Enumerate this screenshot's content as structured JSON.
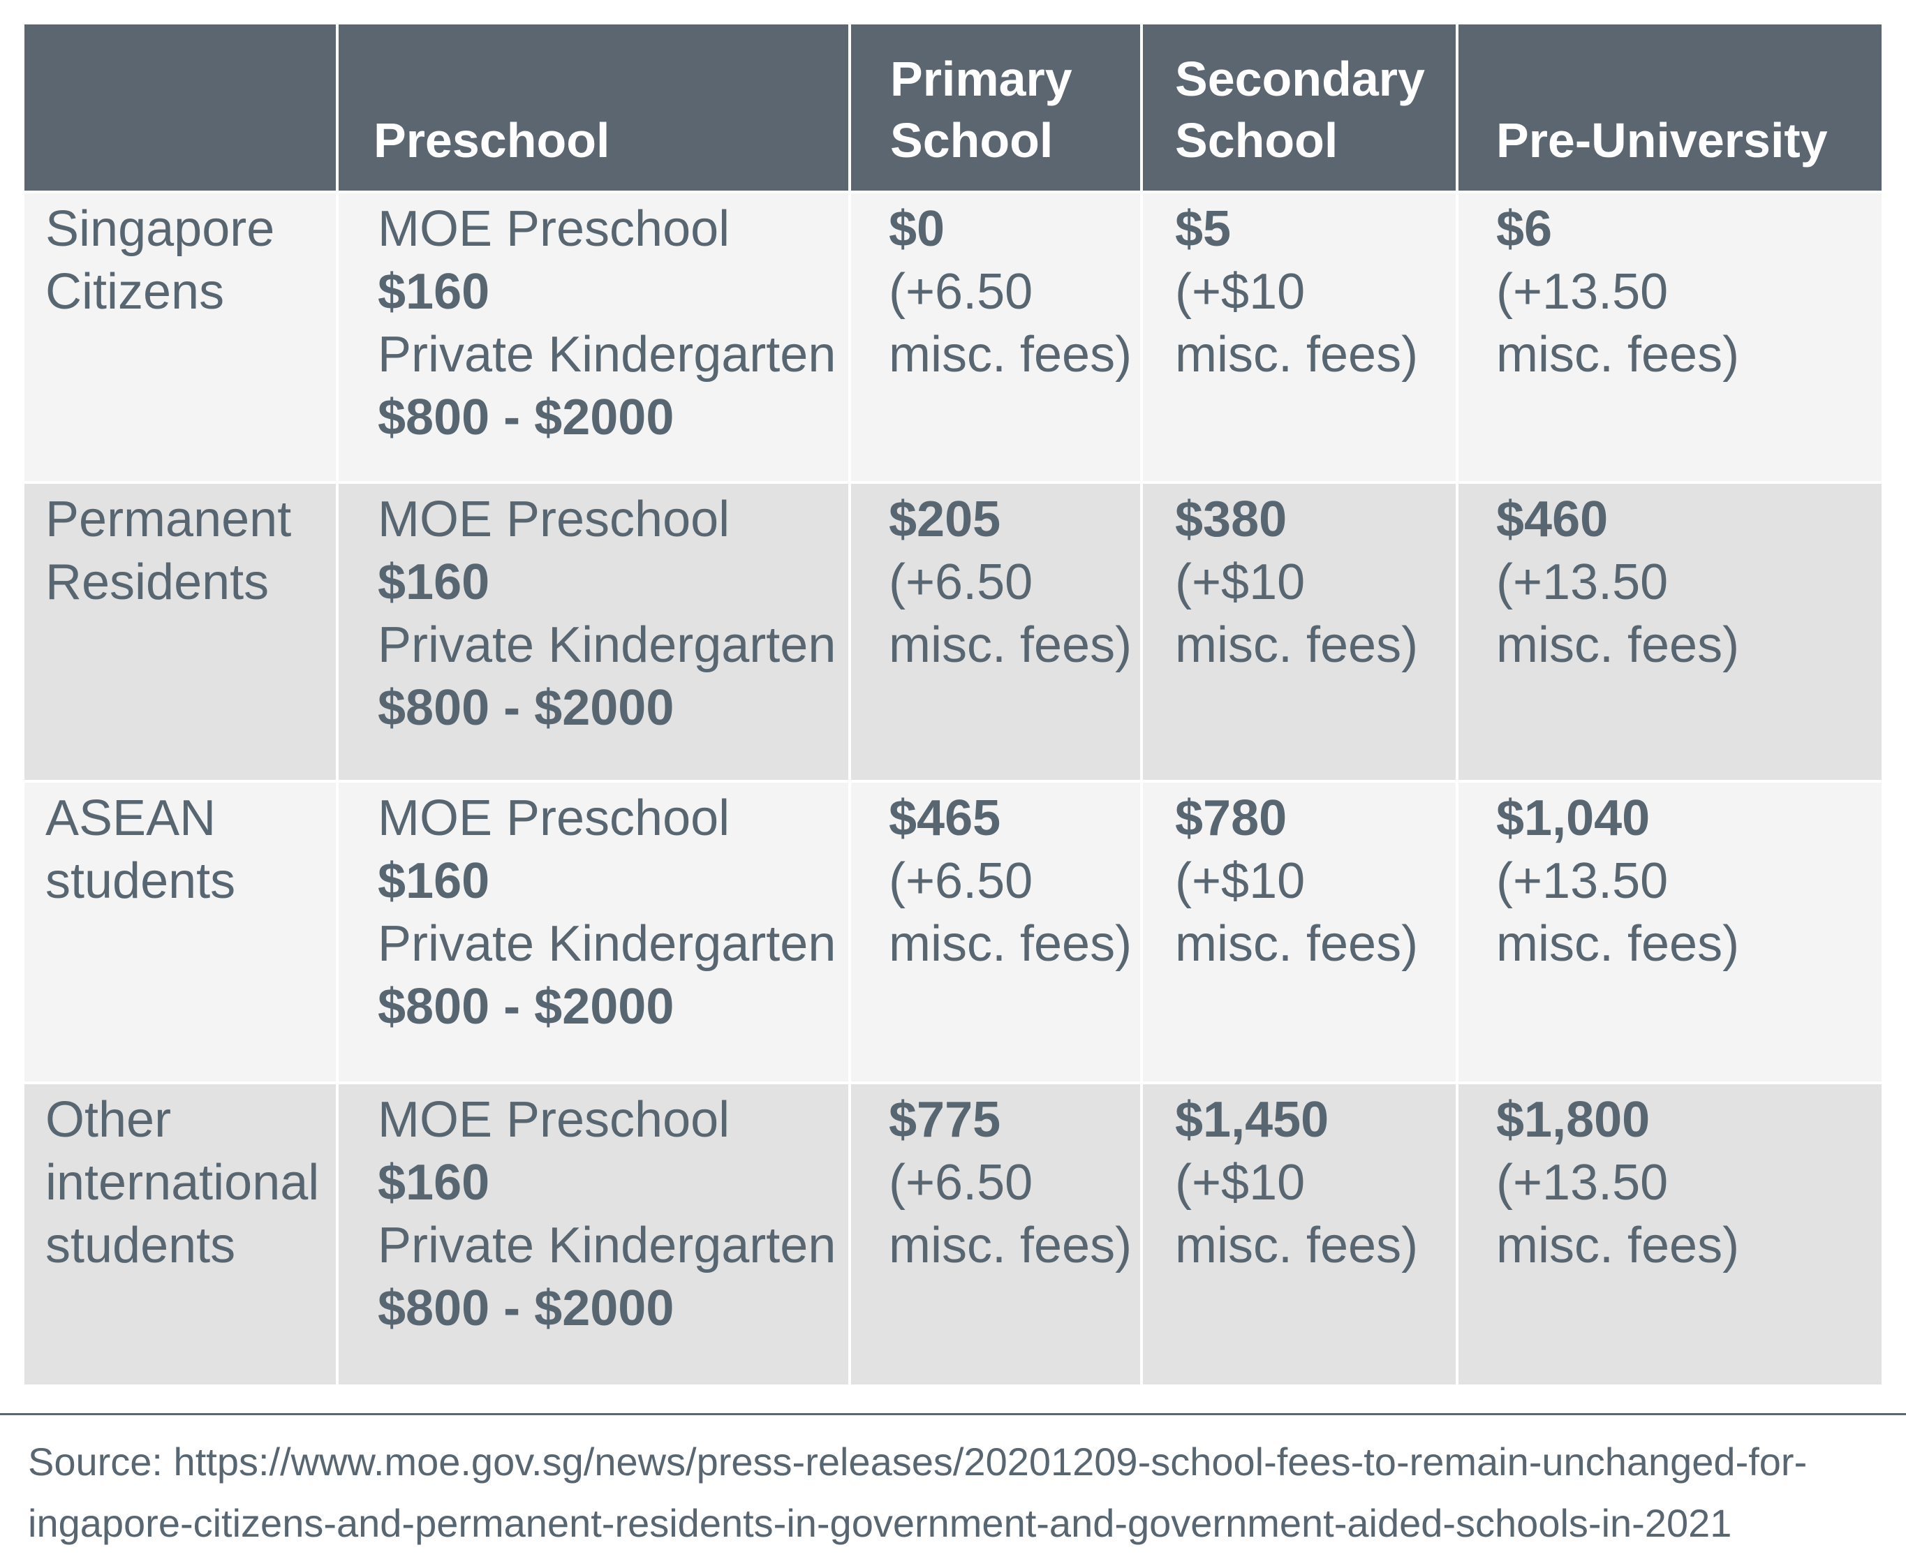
{
  "table": {
    "headers": {
      "category": "",
      "preschool": "Preschool",
      "primary_line1": "Primary",
      "primary_line2": "School",
      "secondary_line1": "Secondary",
      "secondary_line2": "School",
      "preuniversity": "Pre-University"
    },
    "rows": [
      {
        "category": [
          "Singapore",
          "Citizens"
        ],
        "preschool": {
          "moe_label": "MOE Preschool",
          "moe_fee": "$160",
          "private_label": "Private Kindergarten",
          "private_fee": "$800 - $2000"
        },
        "primary": {
          "fee": "$0",
          "misc1": "(+6.50",
          "misc2": "misc. fees)"
        },
        "secondary": {
          "fee": "$5",
          "misc1": "(+$10",
          "misc2": "misc. fees)"
        },
        "preuniversity": {
          "fee": "$6",
          "misc1": "(+13.50",
          "misc2": "misc. fees)"
        }
      },
      {
        "category": [
          "Permanent",
          "Residents"
        ],
        "preschool": {
          "moe_label": "MOE Preschool",
          "moe_fee": "$160",
          "private_label": "Private Kindergarten",
          "private_fee": "$800 - $2000"
        },
        "primary": {
          "fee": "$205",
          "misc1": "(+6.50",
          "misc2": "misc. fees)"
        },
        "secondary": {
          "fee": "$380",
          "misc1": "(+$10",
          "misc2": "misc. fees)"
        },
        "preuniversity": {
          "fee": "$460",
          "misc1": "(+13.50",
          "misc2": "misc. fees)"
        }
      },
      {
        "category": [
          "ASEAN",
          "students"
        ],
        "preschool": {
          "moe_label": "MOE Preschool",
          "moe_fee": "$160",
          "private_label": "Private Kindergarten",
          "private_fee": "$800 - $2000"
        },
        "primary": {
          "fee": "$465",
          "misc1": "(+6.50",
          "misc2": "misc. fees)"
        },
        "secondary": {
          "fee": "$780",
          "misc1": "(+$10",
          "misc2": "misc. fees)"
        },
        "preuniversity": {
          "fee": "$1,040",
          "misc1": "(+13.50",
          "misc2": "misc. fees)"
        }
      },
      {
        "category": [
          "Other",
          "international",
          "students"
        ],
        "preschool": {
          "moe_label": "MOE Preschool",
          "moe_fee": "$160",
          "private_label": "Private Kindergarten",
          "private_fee": "$800 - $2000"
        },
        "primary": {
          "fee": "$775",
          "misc1": "(+6.50",
          "misc2": "misc. fees)"
        },
        "secondary": {
          "fee": "$1,450",
          "misc1": "(+$10",
          "misc2": "misc. fees)"
        },
        "preuniversity": {
          "fee": "$1,800",
          "misc1": "(+13.50",
          "misc2": "misc. fees)"
        }
      }
    ]
  },
  "source": {
    "line1": "Source: https://www.moe.gov.sg/news/press-releases/20201209-school-fees-to-remain-unchanged-for-",
    "line2": "ingapore-citizens-and-permanent-residents-in-government-and-government-aided-schools-in-2021"
  },
  "colors": {
    "header_bg": "#5b6670",
    "header_text": "#ffffff",
    "row_light": "#f4f4f4",
    "row_dark": "#e2e2e2",
    "body_text": "#586671"
  }
}
